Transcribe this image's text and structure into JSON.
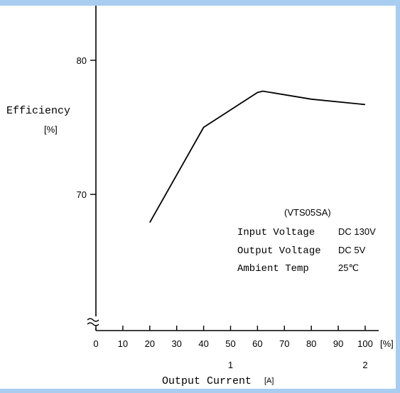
{
  "chart_data": {
    "type": "line",
    "ylabel": "Efficiency",
    "ylabel_unit": "[%]",
    "xlabel": "Output Current",
    "xlabel_unit": "[A]",
    "x_percent_unit": "[%]",
    "x_ticks": [
      "0",
      "10",
      "20",
      "30",
      "40",
      "50",
      "60",
      "70",
      "80",
      "90",
      "100"
    ],
    "x_current_ticks": [
      {
        "label": "1",
        "x": 50
      },
      {
        "label": "2",
        "x": 100
      }
    ],
    "y_ticks": [
      "70",
      "80"
    ],
    "xlim": [
      0,
      100
    ],
    "ylim": [
      60.4,
      84.3
    ],
    "axis_break": true,
    "series": [
      {
        "x": [
          20,
          40,
          60,
          62,
          80,
          100
        ],
        "y": [
          67.9,
          75.0,
          77.6,
          77.7,
          77.1,
          76.7
        ]
      }
    ],
    "annotation": {
      "title": "(VTS05SA)",
      "rows": [
        {
          "label": "Input Voltage",
          "value": "DC 130V"
        },
        {
          "label": "Output Voltage",
          "value": "DC  5V"
        },
        {
          "label": "Ambient Temp",
          "value": "25℃"
        }
      ]
    },
    "colors": {
      "line": "#000000",
      "frame": "#a9ccf1"
    }
  }
}
